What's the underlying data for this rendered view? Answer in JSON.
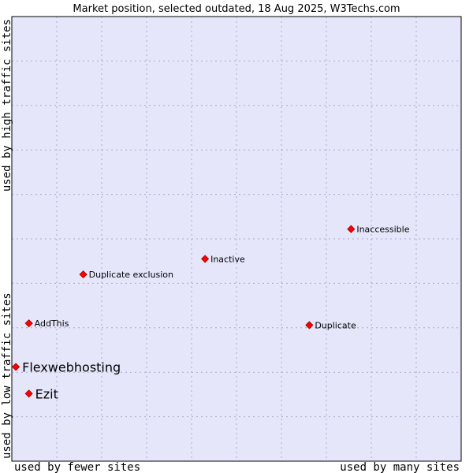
{
  "chart_data": {
    "type": "scatter",
    "title": "Market position, selected outdated, 18 Aug 2025, W3Techs.com",
    "x_axis": {
      "low_label": "used by fewer sites",
      "high_label": "used by many sites"
    },
    "y_axis": {
      "low_label": "used by low traffic sites",
      "high_label": "used by high traffic sites"
    },
    "xlim": [
      0,
      100
    ],
    "ylim": [
      0,
      100
    ],
    "grid": true,
    "points": [
      {
        "label": "Inaccessible",
        "x": 75.5,
        "y": 52.2,
        "emphasis": false
      },
      {
        "label": "Inactive",
        "x": 43.0,
        "y": 45.5,
        "emphasis": false
      },
      {
        "label": "Duplicate exclusion",
        "x": 15.9,
        "y": 42.0,
        "emphasis": false
      },
      {
        "label": "AddThis",
        "x": 3.8,
        "y": 31.0,
        "emphasis": false
      },
      {
        "label": "Duplicate",
        "x": 66.2,
        "y": 30.6,
        "emphasis": false
      },
      {
        "label": "Flexwebhosting",
        "x": 0.9,
        "y": 21.2,
        "emphasis": true
      },
      {
        "label": "Ezit",
        "x": 3.8,
        "y": 15.2,
        "emphasis": true
      }
    ]
  },
  "colors": {
    "plot_background": "#e6e6fa",
    "grid": "#aaaacc",
    "frame": "#000000",
    "marker": "#ff0000",
    "marker_stroke": "#990000"
  }
}
